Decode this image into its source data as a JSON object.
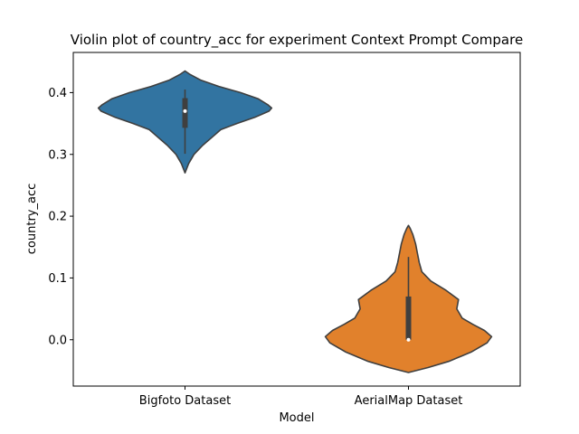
{
  "chart_data": {
    "type": "violin",
    "title": "Violin plot of country_acc for experiment Context Prompt Compare",
    "xlabel": "Model",
    "ylabel": "country_acc",
    "ylim": [
      -0.075,
      0.465
    ],
    "yticks": [
      "0.0",
      "0.1",
      "0.2",
      "0.3",
      "0.4"
    ],
    "grid": false,
    "legend": "none",
    "categories": [
      "Bigfoto Dataset",
      "AerialMap Dataset"
    ],
    "violins": [
      {
        "category": "Bigfoto Dataset",
        "color": "#3274a1",
        "min": 0.27,
        "max": 0.435,
        "median": 0.37,
        "q1": 0.343,
        "q3": 0.391,
        "whisker_low": 0.301,
        "whisker_high": 0.405,
        "density": [
          [
            0.27,
            0.0
          ],
          [
            0.285,
            0.04
          ],
          [
            0.3,
            0.1
          ],
          [
            0.315,
            0.2
          ],
          [
            0.33,
            0.32
          ],
          [
            0.34,
            0.4
          ],
          [
            0.35,
            0.58
          ],
          [
            0.36,
            0.78
          ],
          [
            0.37,
            0.94
          ],
          [
            0.375,
            0.97
          ],
          [
            0.38,
            0.93
          ],
          [
            0.39,
            0.82
          ],
          [
            0.4,
            0.62
          ],
          [
            0.41,
            0.38
          ],
          [
            0.42,
            0.18
          ],
          [
            0.43,
            0.05
          ],
          [
            0.435,
            0.0
          ]
        ]
      },
      {
        "category": "AerialMap Dataset",
        "color": "#e1812c",
        "min": -0.053,
        "max": 0.185,
        "median": 0.0,
        "q1": 0.0,
        "q3": 0.07,
        "whisker_low": 0.0,
        "whisker_high": 0.134,
        "density": [
          [
            -0.053,
            0.0
          ],
          [
            -0.045,
            0.22
          ],
          [
            -0.035,
            0.45
          ],
          [
            -0.02,
            0.7
          ],
          [
            -0.005,
            0.88
          ],
          [
            0.005,
            0.93
          ],
          [
            0.015,
            0.85
          ],
          [
            0.025,
            0.72
          ],
          [
            0.035,
            0.6
          ],
          [
            0.05,
            0.54
          ],
          [
            0.065,
            0.56
          ],
          [
            0.08,
            0.42
          ],
          [
            0.095,
            0.25
          ],
          [
            0.11,
            0.15
          ],
          [
            0.125,
            0.12
          ],
          [
            0.14,
            0.1
          ],
          [
            0.155,
            0.08
          ],
          [
            0.17,
            0.05
          ],
          [
            0.18,
            0.02
          ],
          [
            0.185,
            0.0
          ]
        ]
      }
    ]
  }
}
